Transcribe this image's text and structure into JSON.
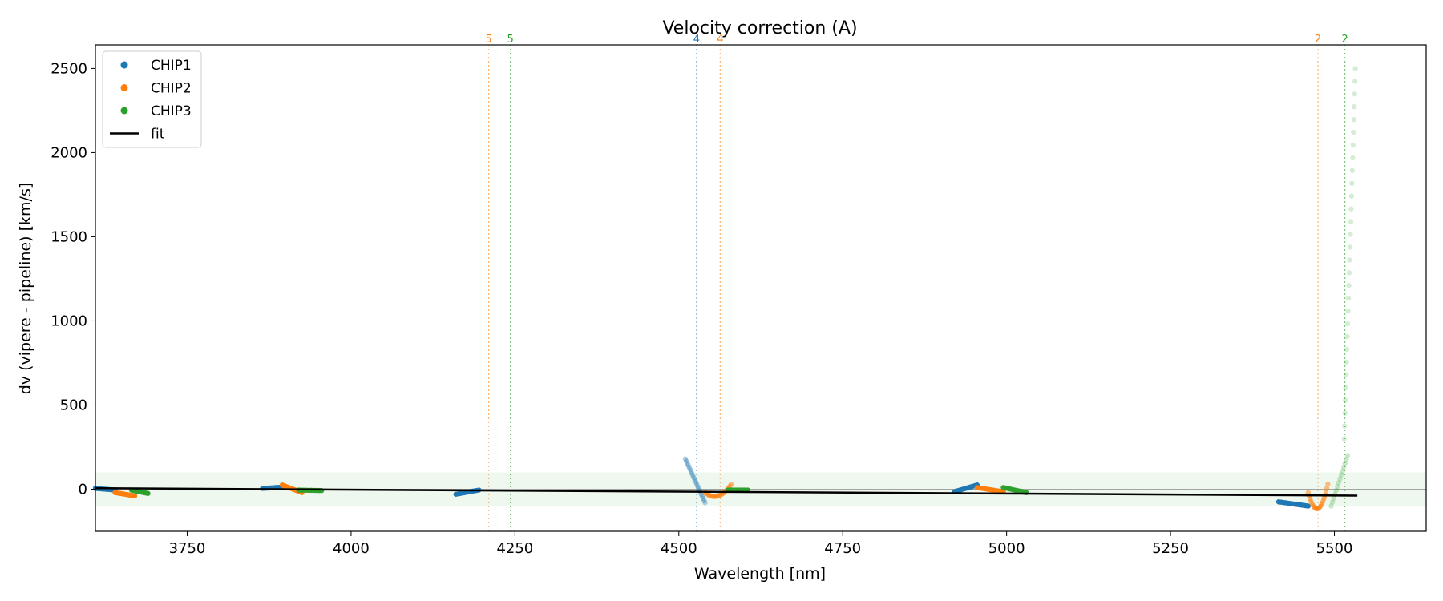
{
  "chart_data": {
    "type": "scatter",
    "title": "Velocity correction (A)",
    "xlabel": "Wavelength [nm]",
    "ylabel": "dv (vipere - pipeline) [km/s]",
    "xlim": [
      3610,
      5640
    ],
    "ylim": [
      -250,
      2640
    ],
    "xticks": [
      3750,
      4000,
      4250,
      4500,
      4750,
      5000,
      5250,
      5500
    ],
    "yticks": [
      0,
      500,
      1000,
      1500,
      2000,
      2500
    ],
    "legend_position": "upper-left",
    "legend": [
      {
        "label": "CHIP1",
        "color": "#1f77b4",
        "kind": "marker"
      },
      {
        "label": "CHIP2",
        "color": "#ff7f0e",
        "kind": "marker"
      },
      {
        "label": "CHIP3",
        "color": "#2ca02c",
        "kind": "marker"
      },
      {
        "label": "fit",
        "color": "#000000",
        "kind": "line"
      }
    ],
    "band": {
      "y0": -100,
      "y1": 100,
      "color": "#2ca02c"
    },
    "hline": {
      "y": 0,
      "color": "#888888"
    },
    "fit": {
      "x": [
        3610,
        5535
      ],
      "y": [
        6,
        -38
      ],
      "color": "#000000"
    },
    "order_lines": [
      {
        "x": 4210,
        "label": "5",
        "color": "#ff7f0e"
      },
      {
        "x": 4243,
        "label": "5",
        "color": "#2ca02c"
      },
      {
        "x": 4527,
        "label": "4",
        "color": "#1f77b4"
      },
      {
        "x": 4563,
        "label": "4",
        "color": "#ff7f0e"
      },
      {
        "x": 5475,
        "label": "2",
        "color": "#ff7f0e"
      },
      {
        "x": 5516,
        "label": "2",
        "color": "#2ca02c"
      }
    ],
    "series": [
      {
        "name": "CHIP1",
        "color": "#1f77b4",
        "segments": [
          {
            "x0": 3610,
            "x1": 3640,
            "y0": 5,
            "y1": -5,
            "n": 12,
            "alpha": 1
          },
          {
            "x0": 3865,
            "x1": 3895,
            "y0": 5,
            "y1": 12,
            "n": 12,
            "alpha": 1
          },
          {
            "x0": 4160,
            "x1": 4195,
            "y0": -30,
            "y1": -5,
            "n": 12,
            "alpha": 1
          },
          {
            "x0": 4510,
            "x1": 4540,
            "y0": 180,
            "y1": -80,
            "n": 22,
            "alpha": 0.35
          },
          {
            "x0": 4920,
            "x1": 4955,
            "y0": -15,
            "y1": 25,
            "n": 14,
            "alpha": 1
          },
          {
            "x0": 5415,
            "x1": 5460,
            "y0": -75,
            "y1": -100,
            "n": 18,
            "alpha": 1
          }
        ]
      },
      {
        "name": "CHIP2",
        "color": "#ff7f0e",
        "segments": [
          {
            "x0": 3640,
            "x1": 3670,
            "y0": -20,
            "y1": -40,
            "n": 12,
            "alpha": 1
          },
          {
            "x0": 3895,
            "x1": 3925,
            "y0": 25,
            "y1": -20,
            "n": 12,
            "alpha": 1
          },
          {
            "x0": 4540,
            "x1": 4580,
            "y0": -20,
            "y1": 30,
            "n": 22,
            "alpha": 0.5,
            "dip": -45
          },
          {
            "x0": 4955,
            "x1": 4995,
            "y0": 10,
            "y1": -15,
            "n": 14,
            "alpha": 1
          },
          {
            "x0": 5460,
            "x1": 5490,
            "y0": -20,
            "y1": 30,
            "n": 22,
            "alpha": 0.5,
            "dip": -120
          }
        ]
      },
      {
        "name": "CHIP3",
        "color": "#2ca02c",
        "segments": [
          {
            "x0": 3665,
            "x1": 3690,
            "y0": -5,
            "y1": -25,
            "n": 10,
            "alpha": 1
          },
          {
            "x0": 3920,
            "x1": 3955,
            "y0": -5,
            "y1": -8,
            "n": 12,
            "alpha": 1
          },
          {
            "x0": 4575,
            "x1": 4605,
            "y0": -5,
            "y1": -5,
            "n": 12,
            "alpha": 1
          },
          {
            "x0": 4995,
            "x1": 5030,
            "y0": 10,
            "y1": -20,
            "n": 14,
            "alpha": 1
          },
          {
            "x0": 5495,
            "x1": 5520,
            "y0": -100,
            "y1": 200,
            "n": 14,
            "alpha": 0.25
          },
          {
            "x0": 5515,
            "x1": 5532,
            "y0": 300,
            "y1": 2500,
            "n": 30,
            "alpha": 0.2
          }
        ]
      }
    ]
  }
}
